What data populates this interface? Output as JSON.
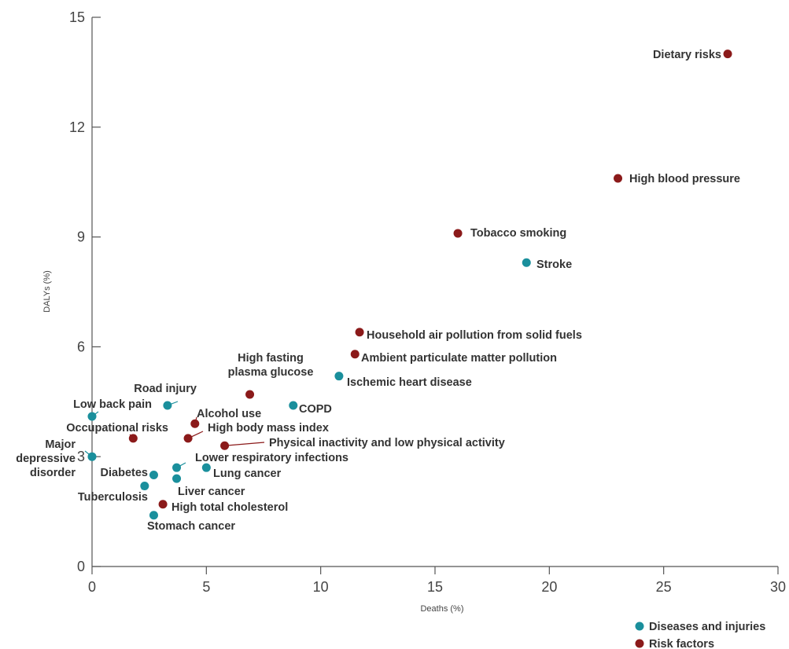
{
  "chart_data": {
    "type": "scatter",
    "title": "",
    "xlabel": "Deaths (%)",
    "ylabel": "DALYs (%)",
    "xlim": [
      0,
      30
    ],
    "ylim": [
      0,
      15
    ],
    "x_ticks": [
      0,
      5,
      10,
      15,
      20,
      25,
      30
    ],
    "y_ticks": [
      0,
      3,
      6,
      9,
      12,
      15
    ],
    "grid": false,
    "legend_position": "bottom-right",
    "series": [
      {
        "name": "Diseases and injuries",
        "color": "#1a8f9c",
        "points": [
          {
            "label": "Stroke",
            "x": 19.0,
            "y": 8.3
          },
          {
            "label": "Ischemic heart disease",
            "x": 10.8,
            "y": 5.2
          },
          {
            "label": "COPD",
            "x": 8.8,
            "y": 4.4
          },
          {
            "label": "Road injury",
            "x": 3.3,
            "y": 4.4
          },
          {
            "label": "Low back pain",
            "x": 0.0,
            "y": 4.1
          },
          {
            "label": "Major depressive disorder",
            "x": 0.0,
            "y": 3.0
          },
          {
            "label": "Lower respiratory infections",
            "x": 3.7,
            "y": 2.7
          },
          {
            "label": "Lung cancer",
            "x": 5.0,
            "y": 2.7
          },
          {
            "label": "Diabetes",
            "x": 2.7,
            "y": 2.5
          },
          {
            "label": "Liver cancer",
            "x": 3.7,
            "y": 2.4
          },
          {
            "label": "Tuberculosis",
            "x": 2.3,
            "y": 2.2
          },
          {
            "label": "Stomach cancer",
            "x": 2.7,
            "y": 1.4
          }
        ]
      },
      {
        "name": "Risk factors",
        "color": "#8b1a1a",
        "points": [
          {
            "label": "Dietary risks",
            "x": 27.8,
            "y": 14.0
          },
          {
            "label": "High blood pressure",
            "x": 23.0,
            "y": 10.6
          },
          {
            "label": "Tobacco smoking",
            "x": 16.0,
            "y": 9.1
          },
          {
            "label": "Household air pollution from solid fuels",
            "x": 11.7,
            "y": 6.4
          },
          {
            "label": "Ambient particulate matter pollution",
            "x": 11.5,
            "y": 5.8
          },
          {
            "label": "High fasting plasma glucose",
            "x": 6.9,
            "y": 4.7
          },
          {
            "label": "Alcohol use",
            "x": 4.5,
            "y": 3.9
          },
          {
            "label": "High body mass index",
            "x": 4.2,
            "y": 3.5
          },
          {
            "label": "Physical inactivity and low physical activity",
            "x": 5.8,
            "y": 3.3
          },
          {
            "label": "Occupational risks",
            "x": 1.8,
            "y": 3.5
          },
          {
            "label": "High total cholesterol",
            "x": 3.1,
            "y": 1.7
          }
        ]
      }
    ]
  }
}
